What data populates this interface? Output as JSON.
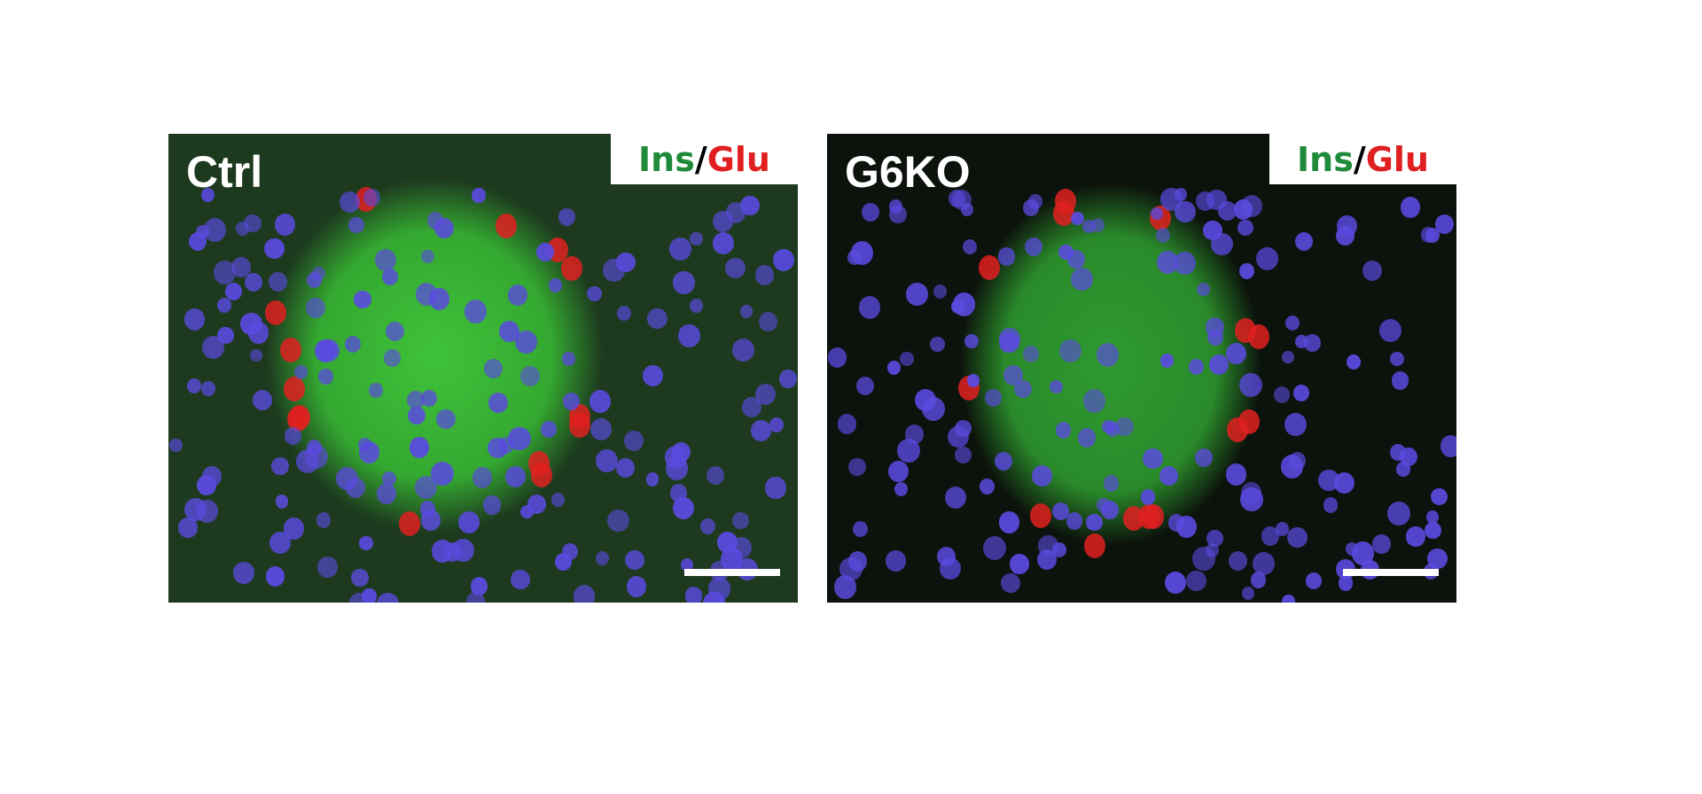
{
  "panels": [
    {
      "condition": "Ctrl",
      "stain_green": "Ins",
      "stain_separator": "/",
      "stain_red": "Glu"
    },
    {
      "condition": "G6KO",
      "stain_green": "Ins",
      "stain_separator": "/",
      "stain_red": "Glu"
    }
  ],
  "colors": {
    "insulin": "#1f8a3a",
    "glucagon": "#e02020",
    "nuclei": "#5a4adf"
  }
}
